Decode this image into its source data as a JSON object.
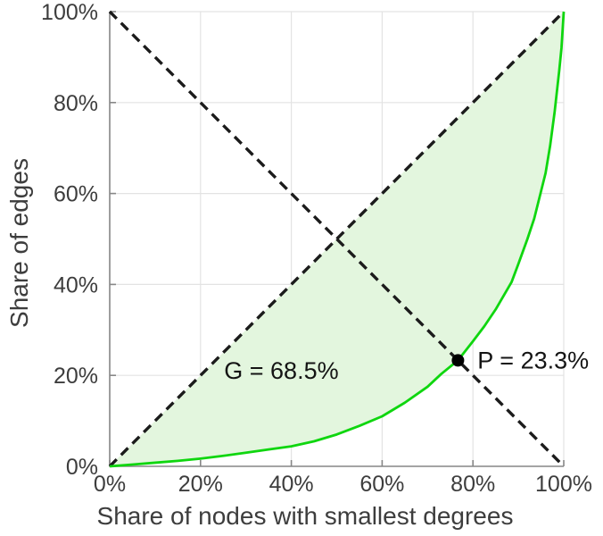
{
  "chart_data": {
    "type": "line",
    "title": "",
    "xlabel": "Share of nodes with smallest degrees",
    "ylabel": "Share of edges",
    "xlim": [
      0,
      100
    ],
    "ylim": [
      0,
      100
    ],
    "grid": true,
    "legend": "none",
    "x_ticks": [
      {
        "value": 0,
        "label": "0%"
      },
      {
        "value": 20,
        "label": "20%"
      },
      {
        "value": 40,
        "label": "40%"
      },
      {
        "value": 60,
        "label": "60%"
      },
      {
        "value": 80,
        "label": "80%"
      },
      {
        "value": 100,
        "label": "100%"
      }
    ],
    "y_ticks": [
      {
        "value": 0,
        "label": "0%"
      },
      {
        "value": 20,
        "label": "20%"
      },
      {
        "value": 40,
        "label": "40%"
      },
      {
        "value": 60,
        "label": "60%"
      },
      {
        "value": 80,
        "label": "80%"
      },
      {
        "value": 100,
        "label": "100%"
      }
    ],
    "series": [
      {
        "id": "equality-diagonal",
        "name": "equality diagonal (dashed)",
        "style": "dashed",
        "color": "#1b1b1b",
        "points": [
          [
            0,
            0
          ],
          [
            100,
            100
          ]
        ]
      },
      {
        "id": "anti-diagonal",
        "name": "anti-diagonal (dashed)",
        "style": "dashed",
        "color": "#1b1b1b",
        "points": [
          [
            0,
            100
          ],
          [
            100,
            0
          ]
        ]
      },
      {
        "id": "lorenz-curve",
        "name": "Lorenz curve of degree distribution",
        "style": "solid",
        "color": "#0fd60f",
        "points": [
          [
            0,
            0
          ],
          [
            5,
            0.4
          ],
          [
            10,
            0.8
          ],
          [
            15,
            1.2
          ],
          [
            20,
            1.7
          ],
          [
            25,
            2.3
          ],
          [
            30,
            3.0
          ],
          [
            35,
            3.7
          ],
          [
            40,
            4.4
          ],
          [
            45,
            5.5
          ],
          [
            50,
            7.0
          ],
          [
            55,
            8.9
          ],
          [
            60,
            11.0
          ],
          [
            65,
            14.0
          ],
          [
            70,
            17.5
          ],
          [
            73,
            20.3
          ],
          [
            76.7,
            23.3
          ],
          [
            80,
            27.5
          ],
          [
            82.5,
            30.8
          ],
          [
            85,
            34.5
          ],
          [
            88.5,
            40.5
          ],
          [
            90,
            44.5
          ],
          [
            92,
            50.0
          ],
          [
            93.5,
            54.5
          ],
          [
            95,
            60.5
          ],
          [
            96,
            64.5
          ],
          [
            97,
            70.5
          ],
          [
            98,
            78.0
          ],
          [
            99,
            87.0
          ],
          [
            99.5,
            92.0
          ],
          [
            100,
            100
          ]
        ]
      }
    ],
    "gini_region": {
      "between": [
        "equality-diagonal",
        "lorenz-curve"
      ],
      "fill": "#e3f6de",
      "gini_value": "68.5%"
    },
    "marker": {
      "x": 76.7,
      "y": 23.3,
      "color": "#000000",
      "radius": 7
    },
    "annotations": [
      {
        "id": "gini-label",
        "text": "G = 68.5%",
        "x": 25.2,
        "y": 21.0
      },
      {
        "id": "p-label",
        "text": "P = 23.3%",
        "x": 81.0,
        "y": 23.3
      }
    ],
    "colors": {
      "grid": "#e3e3e3",
      "axis": "#878787",
      "tick_label": "#3d3d3d",
      "axis_title": "#3d3d3d",
      "annotation": "#141414",
      "dashed_line": "#1b1b1b",
      "curve": "#0fd60f",
      "region_fill": "#e3f6de",
      "marker": "#000000",
      "background": "#ffffff"
    }
  }
}
